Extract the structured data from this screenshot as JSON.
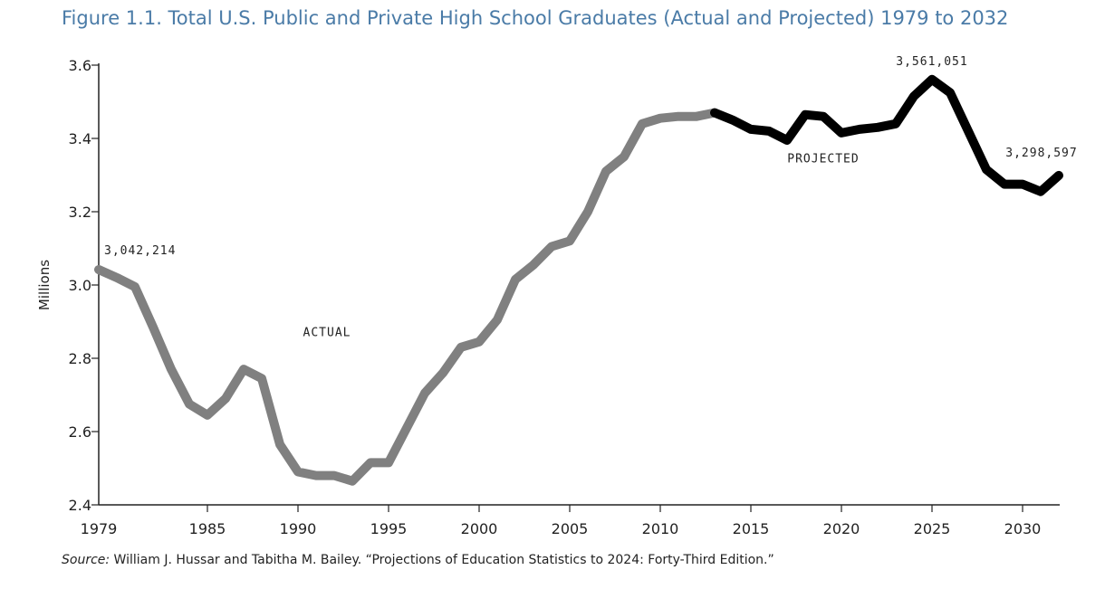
{
  "chart_data": {
    "type": "line",
    "title": "Figure 1.1. Total U.S. Public and Private High School Graduates (Actual and Projected) 1979 to 2032",
    "ylabel": "Millions",
    "xlabel": "",
    "ylim": [
      2.4,
      3.6
    ],
    "xlim": [
      1979,
      2033
    ],
    "x_ticks": [
      1979,
      1985,
      1990,
      1995,
      2000,
      2005,
      2010,
      2015,
      2020,
      2025,
      2030
    ],
    "y_ticks": [
      "2.4",
      "2.6",
      "2.8",
      "3.0",
      "3.2",
      "3.4",
      "3.6"
    ],
    "grid": false,
    "series": [
      {
        "name": "ACTUAL",
        "color": "#808080",
        "points": [
          [
            1979,
            3.042
          ],
          [
            1980,
            3.02
          ],
          [
            1981,
            2.995
          ],
          [
            1982,
            2.885
          ],
          [
            1983,
            2.77
          ],
          [
            1984,
            2.675
          ],
          [
            1985,
            2.645
          ],
          [
            1986,
            2.69
          ],
          [
            1987,
            2.77
          ],
          [
            1988,
            2.745
          ],
          [
            1989,
            2.565
          ],
          [
            1990,
            2.49
          ],
          [
            1991,
            2.48
          ],
          [
            1992,
            2.48
          ],
          [
            1993,
            2.465
          ],
          [
            1994,
            2.515
          ],
          [
            1995,
            2.515
          ],
          [
            1996,
            2.61
          ],
          [
            1997,
            2.705
          ],
          [
            1998,
            2.76
          ],
          [
            1999,
            2.83
          ],
          [
            2000,
            2.845
          ],
          [
            2001,
            2.905
          ],
          [
            2002,
            3.015
          ],
          [
            2003,
            3.055
          ],
          [
            2004,
            3.105
          ],
          [
            2005,
            3.12
          ],
          [
            2006,
            3.2
          ],
          [
            2007,
            3.31
          ],
          [
            2008,
            3.35
          ],
          [
            2009,
            3.44
          ],
          [
            2010,
            3.455
          ],
          [
            2011,
            3.46
          ],
          [
            2012,
            3.46
          ],
          [
            2013,
            3.47
          ]
        ]
      },
      {
        "name": "PROJECTED",
        "color": "#000000",
        "points": [
          [
            2013,
            3.47
          ],
          [
            2014,
            3.45
          ],
          [
            2015,
            3.425
          ],
          [
            2016,
            3.42
          ],
          [
            2017,
            3.395
          ],
          [
            2018,
            3.465
          ],
          [
            2019,
            3.46
          ],
          [
            2020,
            3.415
          ],
          [
            2021,
            3.425
          ],
          [
            2022,
            3.43
          ],
          [
            2023,
            3.44
          ],
          [
            2024,
            3.515
          ],
          [
            2025,
            3.561
          ],
          [
            2026,
            3.525
          ],
          [
            2027,
            3.42
          ],
          [
            2028,
            3.315
          ],
          [
            2029,
            3.275
          ],
          [
            2030,
            3.275
          ],
          [
            2031,
            3.255
          ],
          [
            2032,
            3.299
          ]
        ]
      }
    ],
    "annotations": [
      {
        "text": "3,042,214",
        "x": 1979,
        "y": 3.042
      },
      {
        "text": "3,561,051",
        "x": 2025,
        "y": 3.561
      },
      {
        "text": "3,298,597",
        "x": 2032,
        "y": 3.299
      },
      {
        "text": "ACTUAL",
        "x": 1991.6,
        "y": 2.86
      },
      {
        "text": "PROJECTED",
        "x": 2019,
        "y": 3.335
      }
    ]
  },
  "source": {
    "prefix": "Source:",
    "text": " William J. Hussar and Tabitha M. Bailey. “Projections of Education Statistics to 2024: Forty-Third Edition.”"
  }
}
